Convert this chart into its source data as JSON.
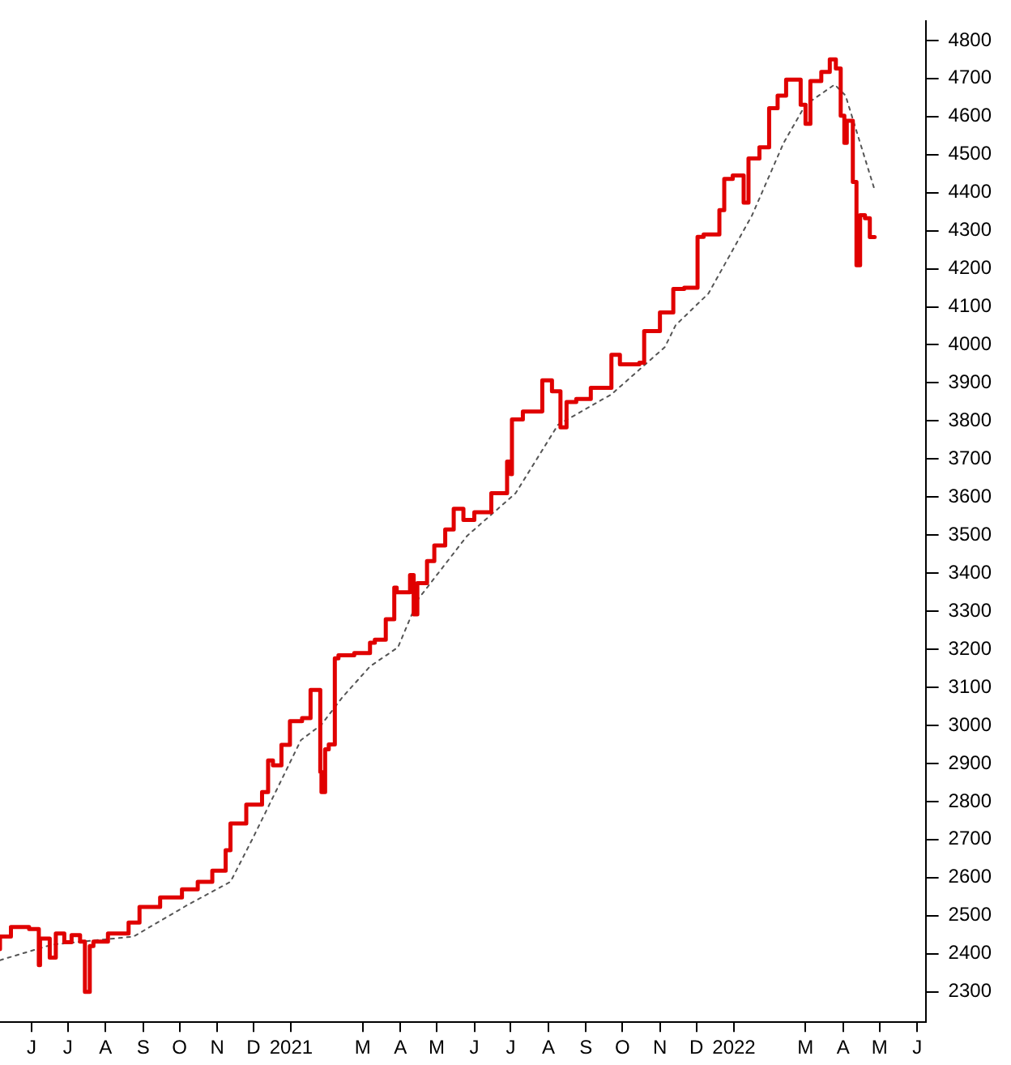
{
  "chart_data": {
    "type": "line",
    "xlim": [
      "2020-05-06",
      "2022-06-08"
    ],
    "xticks": [
      {
        "value": "2020-06-01",
        "label": "J"
      },
      {
        "value": "2020-07-01",
        "label": "J"
      },
      {
        "value": "2020-08-01",
        "label": "A"
      },
      {
        "value": "2020-09-01",
        "label": "S"
      },
      {
        "value": "2020-10-01",
        "label": "O"
      },
      {
        "value": "2020-11-01",
        "label": "N"
      },
      {
        "value": "2020-12-01",
        "label": "D"
      },
      {
        "value": "2021-01-01",
        "label": "2021"
      },
      {
        "value": "2021-03-01",
        "label": "M"
      },
      {
        "value": "2021-04-01",
        "label": "A"
      },
      {
        "value": "2021-05-01",
        "label": "M"
      },
      {
        "value": "2021-06-01",
        "label": "J"
      },
      {
        "value": "2021-07-01",
        "label": "J"
      },
      {
        "value": "2021-08-01",
        "label": "A"
      },
      {
        "value": "2021-09-01",
        "label": "S"
      },
      {
        "value": "2021-10-01",
        "label": "O"
      },
      {
        "value": "2021-11-01",
        "label": "N"
      },
      {
        "value": "2021-12-01",
        "label": "D"
      },
      {
        "value": "2022-01-01",
        "label": "2022"
      },
      {
        "value": "2022-03-01",
        "label": "M"
      },
      {
        "value": "2022-04-01",
        "label": "A"
      },
      {
        "value": "2022-05-01",
        "label": "M"
      },
      {
        "value": "2022-06-01",
        "label": "J"
      }
    ],
    "ylim": [
      2220,
      4850
    ],
    "yticks": [
      2300,
      2400,
      2500,
      2600,
      2700,
      2800,
      2900,
      3000,
      3100,
      3200,
      3300,
      3400,
      3500,
      3600,
      3700,
      3800,
      3900,
      4000,
      4100,
      4200,
      4300,
      4400,
      4500,
      4600,
      4700,
      4800
    ],
    "grid": false,
    "legend": false,
    "marker": "none",
    "series": [
      {
        "type": "step",
        "color": "#e00000",
        "line_style": "solid",
        "x": [
          "2020-05-06",
          "2020-05-15",
          "2020-05-30",
          "2020-06-04",
          "2020-06-07",
          "2020-06-08",
          "2020-06-10",
          "2020-06-16",
          "2020-06-21",
          "2020-06-28",
          "2020-07-04",
          "2020-07-11",
          "2020-07-15",
          "2020-07-19",
          "2020-07-22",
          "2020-08-03",
          "2020-08-20",
          "2020-08-29",
          "2020-09-15",
          "2020-10-03",
          "2020-10-16",
          "2020-10-28",
          "2020-11-08",
          "2020-11-12",
          "2020-11-25",
          "2020-12-08",
          "2020-12-13",
          "2020-12-17",
          "2020-12-24",
          "2020-12-31",
          "2021-01-10",
          "2021-01-17",
          "2021-01-20",
          "2021-01-25",
          "2021-01-26",
          "2021-01-29",
          "2021-02-01",
          "2021-02-06",
          "2021-02-09",
          "2021-02-22",
          "2021-03-07",
          "2021-03-11",
          "2021-03-20",
          "2021-03-27",
          "2021-03-29",
          "2021-04-09",
          "2021-04-12",
          "2021-04-15",
          "2021-04-23",
          "2021-04-29",
          "2021-05-08",
          "2021-05-15",
          "2021-05-23",
          "2021-06-01",
          "2021-06-15",
          "2021-06-28",
          "2021-07-01",
          "2021-07-02",
          "2021-07-11",
          "2021-07-27",
          "2021-08-04",
          "2021-08-11",
          "2021-08-16",
          "2021-08-24",
          "2021-09-05",
          "2021-09-22",
          "2021-09-29",
          "2021-10-15",
          "2021-10-19",
          "2021-11-01",
          "2021-11-12",
          "2021-11-21",
          "2021-12-02",
          "2021-12-07",
          "2021-12-20",
          "2021-12-24",
          "2021-12-31",
          "2022-01-09",
          "2022-01-13",
          "2022-01-22",
          "2022-01-30",
          "2022-02-06",
          "2022-02-13",
          "2022-02-25",
          "2022-03-01",
          "2022-03-05",
          "2022-03-14",
          "2022-03-21",
          "2022-03-26",
          "2022-03-30",
          "2022-04-02",
          "2022-04-04",
          "2022-04-09",
          "2022-04-12",
          "2022-04-15",
          "2022-04-19",
          "2022-04-23",
          "2022-04-27"
        ],
        "values": [
          2412,
          2445,
          2470,
          2465,
          2465,
          2370,
          2440,
          2440,
          2390,
          2453,
          2430,
          2449,
          2432,
          2300,
          2420,
          2432,
          2453,
          2482,
          2523,
          2548,
          2569,
          2589,
          2618,
          2672,
          2742,
          2792,
          2825,
          2908,
          2895,
          2949,
          3011,
          3019,
          3093,
          3093,
          2878,
          2825,
          2937,
          2950,
          3176,
          3184,
          3190,
          3217,
          3225,
          3279,
          3362,
          3350,
          3395,
          3292,
          3374,
          3432,
          3473,
          3515,
          3569,
          3540,
          3560,
          3610,
          3693,
          3660,
          3804,
          3825,
          3907,
          3878,
          3783,
          3850,
          3858,
          3887,
          3974,
          3949,
          3953,
          4036,
          4085,
          4147,
          4150,
          4284,
          4290,
          4354,
          4436,
          4445,
          4374,
          4490,
          4519,
          4622,
          4655,
          4697,
          4631,
          4581,
          4693,
          4717,
          4750,
          4726,
          4602,
          4531,
          4589,
          4428,
          4209,
          4341,
          4333,
          4283
        ]
      },
      {
        "type": "line",
        "color": "#555555",
        "line_style": "dotted",
        "x": [
          "2020-05-06",
          "2020-06-18",
          "2020-08-24",
          "2020-10-07",
          "2020-11-12",
          "2020-11-30",
          "2020-12-21",
          "2021-01-09",
          "2021-01-26",
          "2021-02-12",
          "2021-03-07",
          "2021-03-30",
          "2021-04-16",
          "2021-05-26",
          "2021-07-05",
          "2021-08-09",
          "2021-09-22",
          "2021-11-05",
          "2021-11-14",
          "2021-12-11",
          "2022-01-16",
          "2022-02-11",
          "2022-03-01",
          "2022-03-25",
          "2022-04-03",
          "2022-04-27"
        ],
        "values": [
          2383,
          2424,
          2445,
          2527,
          2589,
          2701,
          2837,
          2961,
          3002,
          3073,
          3155,
          3205,
          3333,
          3498,
          3610,
          3790,
          3870,
          3994,
          4052,
          4135,
          4341,
          4531,
          4631,
          4684,
          4655,
          4407
        ]
      }
    ]
  }
}
